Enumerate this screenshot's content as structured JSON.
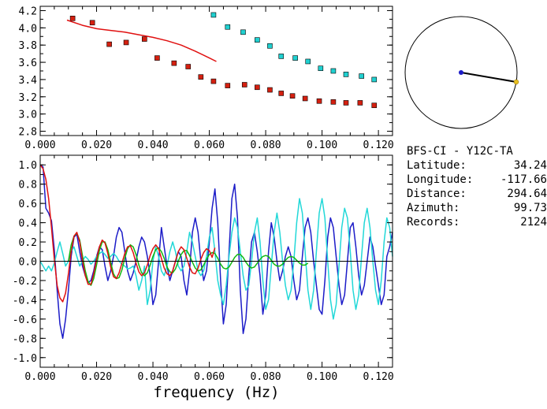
{
  "chart_data": [
    {
      "type": "scatter",
      "xlim": [
        0,
        0.125
      ],
      "ylim": [
        2.75,
        4.25
      ],
      "x_ticks": [
        "0.000",
        "0.020",
        "0.040",
        "0.060",
        "0.080",
        "0.100",
        "0.120"
      ],
      "y_ticks": [
        "2.8",
        "3.0",
        "3.2",
        "3.4",
        "3.6",
        "3.8",
        "4.0",
        "4.2"
      ],
      "series": [
        {
          "color": "#d42010",
          "marker": "square",
          "x": [
            0.0115,
            0.0185,
            0.0245,
            0.0305,
            0.037,
            0.0415,
            0.0475,
            0.0525,
            0.057,
            0.0615,
            0.0665,
            0.0725,
            0.077,
            0.0815,
            0.0855,
            0.0895,
            0.094,
            0.099,
            0.104,
            0.1085,
            0.1135,
            0.1185
          ],
          "y": [
            4.11,
            4.06,
            3.81,
            3.83,
            3.87,
            3.65,
            3.59,
            3.55,
            3.43,
            3.38,
            3.33,
            3.34,
            3.31,
            3.28,
            3.24,
            3.21,
            3.18,
            3.15,
            3.14,
            3.13,
            3.13,
            3.1
          ]
        },
        {
          "color": "#20d0d0",
          "marker": "square",
          "x": [
            0.0615,
            0.0665,
            0.072,
            0.077,
            0.0815,
            0.0855,
            0.0905,
            0.095,
            0.0995,
            0.104,
            0.1085,
            0.114,
            0.1185
          ],
          "y": [
            4.15,
            4.01,
            3.95,
            3.86,
            3.79,
            3.67,
            3.65,
            3.61,
            3.53,
            3.5,
            3.46,
            3.44,
            3.4
          ]
        },
        {
          "color": "#e01010",
          "marker": "line",
          "x": [
            0.0095,
            0.015,
            0.02,
            0.025,
            0.03,
            0.035,
            0.04,
            0.045,
            0.05,
            0.055,
            0.06,
            0.0625
          ],
          "y": [
            4.09,
            4.03,
            3.99,
            3.97,
            3.95,
            3.92,
            3.89,
            3.85,
            3.8,
            3.73,
            3.65,
            3.61
          ]
        }
      ]
    },
    {
      "type": "line",
      "xlim": [
        0,
        0.125
      ],
      "ylim": [
        -1.1,
        1.1
      ],
      "x_ticks": [
        "0.000",
        "0.020",
        "0.040",
        "0.060",
        "0.080",
        "0.100",
        "0.120"
      ],
      "y_ticks": [
        "1.0",
        "0.8",
        "0.6",
        "0.4",
        "0.2",
        "0.0",
        "-0.2",
        "-0.4",
        "-0.6",
        "-0.8",
        "-1.0"
      ],
      "xlabel": "frequency (Hz)",
      "series": [
        {
          "color": "#1c1cc8",
          "x": [
            0,
            0.001,
            0.002,
            0.003,
            0.004,
            0.005,
            0.006,
            0.007,
            0.008,
            0.009,
            0.01,
            0.011,
            0.012,
            0.013,
            0.014,
            0.015,
            0.016,
            0.017,
            0.018,
            0.019,
            0.02,
            0.021,
            0.022,
            0.023,
            0.024,
            0.025,
            0.026,
            0.027,
            0.028,
            0.029,
            0.03,
            0.031,
            0.032,
            0.033,
            0.034,
            0.035,
            0.036,
            0.037,
            0.038,
            0.039,
            0.04,
            0.041,
            0.042,
            0.043,
            0.044,
            0.045,
            0.046,
            0.047,
            0.048,
            0.049,
            0.05,
            0.051,
            0.052,
            0.053,
            0.054,
            0.055,
            0.056,
            0.057,
            0.058,
            0.059,
            0.06,
            0.061,
            0.062,
            0.063,
            0.064,
            0.065,
            0.066,
            0.067,
            0.068,
            0.069,
            0.07,
            0.071,
            0.072,
            0.073,
            0.074,
            0.075,
            0.076,
            0.077,
            0.078,
            0.079,
            0.08,
            0.081,
            0.082,
            0.083,
            0.084,
            0.085,
            0.086,
            0.087,
            0.088,
            0.089,
            0.09,
            0.091,
            0.092,
            0.093,
            0.094,
            0.095,
            0.096,
            0.097,
            0.098,
            0.099,
            0.1,
            0.101,
            0.102,
            0.103,
            0.104,
            0.105,
            0.106,
            0.107,
            0.108,
            0.109,
            0.11,
            0.111,
            0.112,
            0.113,
            0.114,
            0.115,
            0.116,
            0.117,
            0.118,
            0.119,
            0.12,
            0.121,
            0.122,
            0.123,
            0.124,
            0.125
          ],
          "y": [
            1.0,
            0.98,
            0.55,
            0.5,
            0.42,
            0.12,
            -0.3,
            -0.65,
            -0.8,
            -0.6,
            -0.3,
            0.05,
            0.25,
            0.28,
            0.1,
            -0.05,
            -0.15,
            -0.22,
            -0.2,
            -0.1,
            0.05,
            0.15,
            0.12,
            -0.05,
            -0.2,
            -0.1,
            0.05,
            0.25,
            0.35,
            0.3,
            0.1,
            -0.1,
            -0.2,
            -0.12,
            0.0,
            0.15,
            0.25,
            0.2,
            0.05,
            -0.15,
            -0.45,
            -0.35,
            0.0,
            0.35,
            0.15,
            -0.05,
            -0.2,
            -0.1,
            0.0,
            0.1,
            0.05,
            -0.2,
            -0.35,
            -0.1,
            0.3,
            0.45,
            0.3,
            0.0,
            -0.2,
            -0.1,
            0.2,
            0.55,
            0.75,
            0.4,
            -0.2,
            -0.65,
            -0.45,
            0.1,
            0.65,
            0.8,
            0.45,
            -0.3,
            -0.75,
            -0.6,
            -0.15,
            0.2,
            0.3,
            0.1,
            -0.15,
            -0.55,
            -0.35,
            0.1,
            0.4,
            0.25,
            0.0,
            -0.2,
            -0.1,
            0.05,
            0.15,
            0.05,
            -0.2,
            -0.4,
            -0.3,
            0.05,
            0.35,
            0.45,
            0.3,
            0.0,
            -0.25,
            -0.5,
            -0.55,
            -0.2,
            0.25,
            0.45,
            0.35,
            0.05,
            -0.25,
            -0.45,
            -0.35,
            0.0,
            0.35,
            0.4,
            0.15,
            -0.15,
            -0.35,
            -0.25,
            0.0,
            0.25,
            0.15,
            -0.05,
            -0.25,
            -0.45,
            -0.35,
            0.05,
            0.15,
            0.3
          ]
        },
        {
          "color": "#22d8d8",
          "x": [
            0,
            0.001,
            0.002,
            0.003,
            0.004,
            0.005,
            0.006,
            0.007,
            0.008,
            0.009,
            0.01,
            0.011,
            0.012,
            0.013,
            0.014,
            0.015,
            0.016,
            0.017,
            0.018,
            0.019,
            0.02,
            0.021,
            0.022,
            0.023,
            0.024,
            0.025,
            0.026,
            0.027,
            0.028,
            0.029,
            0.03,
            0.031,
            0.032,
            0.033,
            0.034,
            0.035,
            0.036,
            0.037,
            0.038,
            0.039,
            0.04,
            0.041,
            0.042,
            0.043,
            0.044,
            0.045,
            0.046,
            0.047,
            0.048,
            0.049,
            0.05,
            0.051,
            0.052,
            0.053,
            0.054,
            0.055,
            0.056,
            0.057,
            0.058,
            0.059,
            0.06,
            0.061,
            0.062,
            0.063,
            0.064,
            0.065,
            0.066,
            0.067,
            0.068,
            0.069,
            0.07,
            0.071,
            0.072,
            0.073,
            0.074,
            0.075,
            0.076,
            0.077,
            0.078,
            0.079,
            0.08,
            0.081,
            0.082,
            0.083,
            0.084,
            0.085,
            0.086,
            0.087,
            0.088,
            0.089,
            0.09,
            0.091,
            0.092,
            0.093,
            0.094,
            0.095,
            0.096,
            0.097,
            0.098,
            0.099,
            0.1,
            0.101,
            0.102,
            0.103,
            0.104,
            0.105,
            0.106,
            0.107,
            0.108,
            0.109,
            0.11,
            0.111,
            0.112,
            0.113,
            0.114,
            0.115,
            0.116,
            0.117,
            0.118,
            0.119,
            0.12,
            0.121,
            0.122,
            0.123,
            0.124,
            0.125
          ],
          "y": [
            0.0,
            -0.05,
            -0.1,
            -0.05,
            -0.1,
            -0.02,
            0.1,
            0.2,
            0.08,
            -0.05,
            0.0,
            0.1,
            0.15,
            0.05,
            -0.05,
            0.0,
            0.05,
            0.02,
            -0.03,
            0.0,
            0.05,
            0.08,
            0.1,
            0.07,
            0.03,
            0.05,
            0.08,
            0.05,
            0.0,
            -0.03,
            -0.05,
            -0.08,
            -0.07,
            -0.05,
            -0.15,
            -0.3,
            -0.2,
            -0.05,
            -0.45,
            -0.3,
            0.0,
            0.15,
            0.05,
            -0.1,
            -0.15,
            -0.05,
            0.1,
            0.2,
            0.1,
            -0.05,
            -0.1,
            -0.05,
            0.1,
            0.3,
            0.2,
            0.05,
            -0.1,
            -0.15,
            -0.1,
            0.05,
            0.25,
            0.35,
            0.1,
            -0.2,
            -0.35,
            -0.45,
            -0.25,
            0.05,
            0.3,
            0.45,
            0.35,
            0.1,
            -0.15,
            -0.3,
            -0.25,
            0.0,
            0.3,
            0.45,
            0.2,
            -0.2,
            -0.5,
            -0.4,
            -0.05,
            0.3,
            0.5,
            0.3,
            0.0,
            -0.25,
            -0.4,
            -0.3,
            0.0,
            0.4,
            0.65,
            0.5,
            0.1,
            -0.3,
            -0.5,
            -0.3,
            0.1,
            0.5,
            0.65,
            0.45,
            0.0,
            -0.4,
            -0.6,
            -0.45,
            -0.05,
            0.35,
            0.55,
            0.45,
            0.1,
            -0.3,
            -0.5,
            -0.35,
            0.05,
            0.4,
            0.55,
            0.35,
            0.0,
            -0.3,
            -0.45,
            -0.2,
            0.2,
            0.45,
            0.35,
            0.05
          ]
        },
        {
          "color": "#10b810",
          "x": [
            0.01,
            0.011,
            0.012,
            0.013,
            0.014,
            0.015,
            0.016,
            0.017,
            0.018,
            0.019,
            0.02,
            0.021,
            0.022,
            0.023,
            0.024,
            0.025,
            0.026,
            0.027,
            0.028,
            0.029,
            0.03,
            0.031,
            0.032,
            0.033,
            0.034,
            0.035,
            0.036,
            0.037,
            0.038,
            0.039,
            0.04,
            0.041,
            0.042,
            0.043,
            0.044,
            0.045,
            0.046,
            0.047,
            0.048,
            0.049,
            0.05,
            0.051,
            0.052,
            0.053,
            0.054,
            0.055,
            0.056,
            0.057,
            0.058,
            0.059,
            0.06,
            0.061,
            0.062,
            0.063,
            0.064,
            0.065,
            0.066,
            0.067,
            0.068,
            0.069,
            0.07,
            0.071,
            0.072,
            0.073,
            0.074,
            0.075,
            0.076,
            0.077,
            0.078,
            0.079,
            0.08,
            0.081,
            0.082,
            0.083,
            0.084,
            0.085,
            0.086,
            0.087,
            0.088,
            0.089,
            0.09,
            0.091,
            0.092,
            0.093,
            0.094,
            0.095
          ],
          "y": [
            0.0,
            0.17,
            0.26,
            0.29,
            0.22,
            0.06,
            -0.1,
            -0.21,
            -0.25,
            -0.18,
            -0.04,
            0.11,
            0.2,
            0.2,
            0.12,
            -0.01,
            -0.13,
            -0.18,
            -0.17,
            -0.09,
            0.03,
            0.13,
            0.17,
            0.15,
            0.07,
            -0.04,
            -0.12,
            -0.15,
            -0.12,
            -0.04,
            0.05,
            0.12,
            0.14,
            0.1,
            0.03,
            -0.06,
            -0.11,
            -0.12,
            -0.08,
            0.0,
            0.07,
            0.11,
            0.11,
            0.06,
            -0.01,
            -0.07,
            -0.1,
            -0.09,
            -0.04,
            0.02,
            0.07,
            0.09,
            0.08,
            0.03,
            -0.03,
            -0.07,
            -0.08,
            -0.06,
            -0.01,
            0.04,
            0.07,
            0.07,
            0.04,
            -0.01,
            -0.05,
            -0.07,
            -0.06,
            -0.02,
            0.02,
            0.05,
            0.06,
            0.05,
            0.01,
            -0.03,
            -0.05,
            -0.05,
            -0.03,
            0.01,
            0.04,
            0.05,
            0.04,
            0.01,
            -0.02,
            -0.04,
            -0.04,
            -0.02
          ]
        },
        {
          "color": "#e01010",
          "x": [
            0,
            0.001,
            0.002,
            0.003,
            0.004,
            0.005,
            0.006,
            0.007,
            0.008,
            0.009,
            0.01,
            0.011,
            0.012,
            0.013,
            0.014,
            0.015,
            0.016,
            0.017,
            0.018,
            0.019,
            0.02,
            0.021,
            0.022,
            0.023,
            0.024,
            0.025,
            0.026,
            0.027,
            0.028,
            0.029,
            0.03,
            0.031,
            0.032,
            0.033,
            0.034,
            0.035,
            0.036,
            0.037,
            0.038,
            0.039,
            0.04,
            0.041,
            0.042,
            0.043,
            0.044,
            0.045,
            0.046,
            0.047,
            0.048,
            0.049,
            0.05,
            0.051,
            0.052,
            0.053,
            0.054,
            0.055,
            0.056,
            0.057,
            0.058,
            0.059,
            0.06,
            0.061,
            0.062
          ],
          "y": [
            1.0,
            0.96,
            0.85,
            0.65,
            0.35,
            0.02,
            -0.25,
            -0.38,
            -0.42,
            -0.33,
            -0.13,
            0.1,
            0.26,
            0.3,
            0.2,
            0.01,
            -0.15,
            -0.24,
            -0.24,
            -0.13,
            0.02,
            0.15,
            0.22,
            0.19,
            0.08,
            -0.06,
            -0.16,
            -0.18,
            -0.12,
            -0.02,
            0.08,
            0.15,
            0.16,
            0.09,
            -0.02,
            -0.11,
            -0.15,
            -0.12,
            -0.04,
            0.06,
            0.13,
            0.17,
            0.13,
            0.03,
            -0.07,
            -0.13,
            -0.15,
            -0.1,
            0.0,
            0.1,
            0.15,
            0.12,
            0.03,
            -0.06,
            -0.12,
            -0.13,
            -0.07,
            0.02,
            0.09,
            0.13,
            0.11,
            0.04,
            0.14
          ]
        }
      ]
    }
  ],
  "info": {
    "station": "BFS-CI - Y12C-TA",
    "rows": [
      {
        "key": "Latitude:",
        "value": "34.24"
      },
      {
        "key": "Longitude:",
        "value": "-117.66"
      },
      {
        "key": "Distance:",
        "value": "294.64"
      },
      {
        "key": "Azimuth:",
        "value": "99.73"
      },
      {
        "key": "Records:",
        "value": "2124"
      }
    ]
  },
  "azimuth_deg": 99.73,
  "colors": {
    "axis": "#000000",
    "circle": "#000000",
    "dot_center": "#1c1cc8",
    "dot_edge": "#e8c020"
  }
}
